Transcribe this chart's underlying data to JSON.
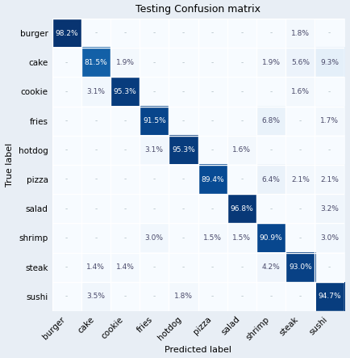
{
  "title": "Testing Confusion matrix",
  "xlabel": "Predicted label",
  "ylabel": "True label",
  "classes": [
    "burger",
    "cake",
    "cookie",
    "fries",
    "hotdog",
    "pizza",
    "salad",
    "shrimp",
    "steak",
    "sushi"
  ],
  "matrix": [
    [
      98.2,
      null,
      null,
      null,
      null,
      null,
      null,
      null,
      1.8,
      null
    ],
    [
      null,
      81.5,
      1.9,
      null,
      null,
      null,
      null,
      1.9,
      5.6,
      9.3
    ],
    [
      null,
      3.1,
      95.3,
      null,
      null,
      null,
      null,
      null,
      1.6,
      null
    ],
    [
      null,
      null,
      null,
      91.5,
      null,
      null,
      null,
      6.8,
      null,
      1.7
    ],
    [
      null,
      null,
      null,
      3.1,
      95.3,
      null,
      1.6,
      null,
      null,
      null
    ],
    [
      null,
      null,
      null,
      null,
      null,
      89.4,
      null,
      6.4,
      2.1,
      2.1
    ],
    [
      null,
      null,
      null,
      null,
      null,
      null,
      96.8,
      null,
      null,
      3.2
    ],
    [
      null,
      null,
      null,
      3.0,
      null,
      1.5,
      1.5,
      90.9,
      null,
      3.0
    ],
    [
      null,
      1.4,
      1.4,
      null,
      null,
      null,
      null,
      4.2,
      93.0,
      null
    ],
    [
      null,
      3.5,
      null,
      null,
      1.8,
      null,
      null,
      null,
      null,
      94.7
    ]
  ],
  "background_color": "#e8eef5",
  "colormap": "Blues",
  "title_fontsize": 9,
  "label_fontsize": 8,
  "tick_fontsize": 7.5,
  "annot_fontsize": 6.5,
  "vmin": 0,
  "vmax": 100
}
